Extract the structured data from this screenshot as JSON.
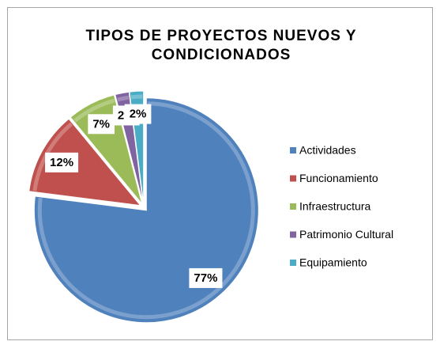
{
  "chart_data": {
    "type": "pie",
    "title": "TIPOS DE PROYECTOS NUEVOS Y CONDICIONADOS",
    "categories": [
      "Actividades",
      "Funcionamiento",
      "Infraestructura",
      "Patrimonio Cultural",
      "Equipamiento"
    ],
    "values": [
      77,
      12,
      7,
      2,
      2
    ],
    "value_labels": [
      "77%",
      "12%",
      "7%",
      "2%",
      "2%"
    ],
    "colors": [
      "#4f81bd",
      "#c0504d",
      "#9bbb59",
      "#8064a2",
      "#4bacc6"
    ],
    "legend": "right"
  }
}
